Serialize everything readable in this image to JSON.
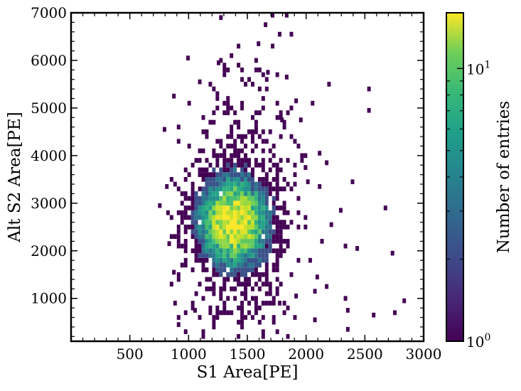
{
  "chart_data": {
    "type": "heatmap",
    "title": "",
    "xlabel": "S1 Area[PE]",
    "ylabel": "Alt S2 Area[PE]",
    "xlim": [
      0,
      3000
    ],
    "ylim": [
      100,
      7000
    ],
    "xticks": [
      "500",
      "1000",
      "1500",
      "2000",
      "2500",
      "3000"
    ],
    "yticks": [
      "1000",
      "2000",
      "3000",
      "4000",
      "5000",
      "6000",
      "7000"
    ],
    "bin_width_x": 30,
    "bin_width_y": 100,
    "colormap": "viridis",
    "colorbar": {
      "label": "Number of entries",
      "scale": "log",
      "range": [
        1,
        16
      ],
      "ticks": [
        "10^0",
        "10^1"
      ]
    },
    "density_model": {
      "core": {
        "x_center": 1380,
        "y_center": 2600,
        "x_spread": 155,
        "y_spread": 480,
        "peak_count": 16
      },
      "halo": {
        "x_range": [
          750,
          2800
        ],
        "y_range": [
          150,
          7000
        ]
      }
    },
    "outlier_bins": [
      [
        1700,
        6900
      ],
      [
        1820,
        6900
      ],
      [
        1260,
        6850
      ],
      [
        1640,
        6700
      ],
      [
        1760,
        6500
      ],
      [
        1860,
        6500
      ],
      [
        1580,
        6300
      ],
      [
        1700,
        6250
      ],
      [
        980,
        6000
      ],
      [
        1240,
        5900
      ],
      [
        1660,
        5700
      ],
      [
        1820,
        5600
      ],
      [
        1080,
        5500
      ],
      [
        2180,
        5450
      ],
      [
        2520,
        5350
      ],
      [
        860,
        5200
      ],
      [
        1900,
        5100
      ],
      [
        2040,
        5050
      ],
      [
        2520,
        4900
      ],
      [
        1940,
        4700
      ],
      [
        1780,
        4700
      ],
      [
        780,
        4500
      ],
      [
        1860,
        4350
      ],
      [
        2100,
        4000
      ],
      [
        2160,
        3800
      ],
      [
        1980,
        3700
      ],
      [
        2000,
        3400
      ],
      [
        2380,
        3400
      ],
      [
        2100,
        3300
      ],
      [
        2660,
        2850
      ],
      [
        2280,
        2800
      ],
      [
        2200,
        2500
      ],
      [
        2120,
        2150
      ],
      [
        2320,
        2050
      ],
      [
        2420,
        2000
      ],
      [
        2720,
        1900
      ],
      [
        2020,
        1750
      ],
      [
        2080,
        1400
      ],
      [
        2160,
        1200
      ],
      [
        2060,
        1100
      ],
      [
        2320,
        950
      ],
      [
        2820,
        900
      ],
      [
        2340,
        700
      ],
      [
        2560,
        600
      ],
      [
        2740,
        650
      ],
      [
        2060,
        500
      ],
      [
        2340,
        300
      ],
      [
        960,
        250
      ],
      [
        900,
        400
      ],
      [
        1560,
        650
      ],
      [
        1760,
        850
      ],
      [
        1900,
        1000
      ],
      [
        1040,
        700
      ],
      [
        860,
        1500
      ],
      [
        820,
        2100
      ],
      [
        740,
        2900
      ],
      [
        800,
        3300
      ]
    ]
  }
}
